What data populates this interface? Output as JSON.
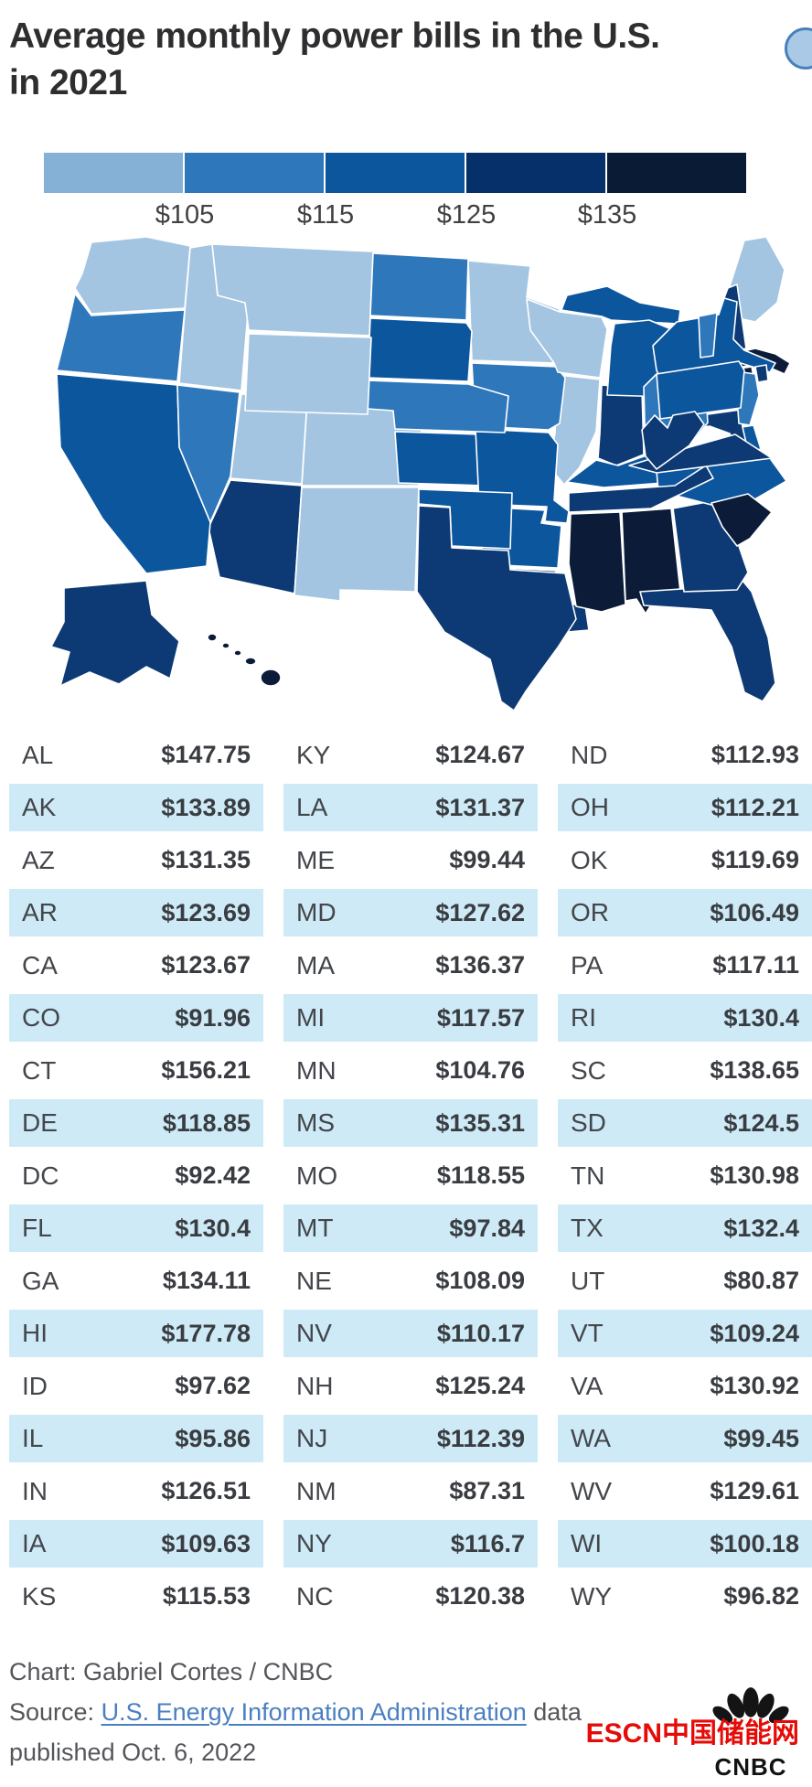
{
  "header": {
    "title_line1": "Average monthly power bills in the U.S.",
    "title_line2": "in 2021"
  },
  "legend": {
    "labels": [
      "$105",
      "$115",
      "$125",
      "$135"
    ],
    "colors": [
      "#85b1d6",
      "#2e77ba",
      "#0c569e",
      "#063069",
      "#0a1b36"
    ]
  },
  "chart_data": {
    "type": "heatmap",
    "subtype": "us-state-choropleth-with-table",
    "title": "Average monthly power bills in the U.S. in 2021",
    "legend_thresholds": [
      105,
      115,
      125,
      135
    ],
    "legend_labels": [
      "$105",
      "$115",
      "$125",
      "$135"
    ],
    "map_bin_colors": [
      "#a3c5e2",
      "#2e77ba",
      "#0c569e",
      "#0d3a74",
      "#0c1c38"
    ],
    "legend_position": "top",
    "states": [
      {
        "abbr": "AL",
        "value": 147.75,
        "display": "$147.75"
      },
      {
        "abbr": "AK",
        "value": 133.89,
        "display": "$133.89"
      },
      {
        "abbr": "AZ",
        "value": 131.35,
        "display": "$131.35"
      },
      {
        "abbr": "AR",
        "value": 123.69,
        "display": "$123.69"
      },
      {
        "abbr": "CA",
        "value": 123.67,
        "display": "$123.67"
      },
      {
        "abbr": "CO",
        "value": 91.96,
        "display": "$91.96"
      },
      {
        "abbr": "CT",
        "value": 156.21,
        "display": "$156.21"
      },
      {
        "abbr": "DE",
        "value": 118.85,
        "display": "$118.85"
      },
      {
        "abbr": "DC",
        "value": 92.42,
        "display": "$92.42"
      },
      {
        "abbr": "FL",
        "value": 130.4,
        "display": "$130.4"
      },
      {
        "abbr": "GA",
        "value": 134.11,
        "display": "$134.11"
      },
      {
        "abbr": "HI",
        "value": 177.78,
        "display": "$177.78"
      },
      {
        "abbr": "ID",
        "value": 97.62,
        "display": "$97.62"
      },
      {
        "abbr": "IL",
        "value": 95.86,
        "display": "$95.86"
      },
      {
        "abbr": "IN",
        "value": 126.51,
        "display": "$126.51"
      },
      {
        "abbr": "IA",
        "value": 109.63,
        "display": "$109.63"
      },
      {
        "abbr": "KS",
        "value": 115.53,
        "display": "$115.53"
      },
      {
        "abbr": "KY",
        "value": 124.67,
        "display": "$124.67"
      },
      {
        "abbr": "LA",
        "value": 131.37,
        "display": "$131.37"
      },
      {
        "abbr": "ME",
        "value": 99.44,
        "display": "$99.44"
      },
      {
        "abbr": "MD",
        "value": 127.62,
        "display": "$127.62"
      },
      {
        "abbr": "MA",
        "value": 136.37,
        "display": "$136.37"
      },
      {
        "abbr": "MI",
        "value": 117.57,
        "display": "$117.57"
      },
      {
        "abbr": "MN",
        "value": 104.76,
        "display": "$104.76"
      },
      {
        "abbr": "MS",
        "value": 135.31,
        "display": "$135.31"
      },
      {
        "abbr": "MO",
        "value": 118.55,
        "display": "$118.55"
      },
      {
        "abbr": "MT",
        "value": 97.84,
        "display": "$97.84"
      },
      {
        "abbr": "NE",
        "value": 108.09,
        "display": "$108.09"
      },
      {
        "abbr": "NV",
        "value": 110.17,
        "display": "$110.17"
      },
      {
        "abbr": "NH",
        "value": 125.24,
        "display": "$125.24"
      },
      {
        "abbr": "NJ",
        "value": 112.39,
        "display": "$112.39"
      },
      {
        "abbr": "NM",
        "value": 87.31,
        "display": "$87.31"
      },
      {
        "abbr": "NY",
        "value": 116.7,
        "display": "$116.7"
      },
      {
        "abbr": "NC",
        "value": 120.38,
        "display": "$120.38"
      },
      {
        "abbr": "ND",
        "value": 112.93,
        "display": "$112.93"
      },
      {
        "abbr": "OH",
        "value": 112.21,
        "display": "$112.21"
      },
      {
        "abbr": "OK",
        "value": 119.69,
        "display": "$119.69"
      },
      {
        "abbr": "OR",
        "value": 106.49,
        "display": "$106.49"
      },
      {
        "abbr": "PA",
        "value": 117.11,
        "display": "$117.11"
      },
      {
        "abbr": "RI",
        "value": 130.4,
        "display": "$130.4"
      },
      {
        "abbr": "SC",
        "value": 138.65,
        "display": "$138.65"
      },
      {
        "abbr": "SD",
        "value": 124.5,
        "display": "$124.5"
      },
      {
        "abbr": "TN",
        "value": 130.98,
        "display": "$130.98"
      },
      {
        "abbr": "TX",
        "value": 132.4,
        "display": "$132.4"
      },
      {
        "abbr": "UT",
        "value": 80.87,
        "display": "$80.87"
      },
      {
        "abbr": "VT",
        "value": 109.24,
        "display": "$109.24"
      },
      {
        "abbr": "VA",
        "value": 130.92,
        "display": "$130.92"
      },
      {
        "abbr": "WA",
        "value": 99.45,
        "display": "$99.45"
      },
      {
        "abbr": "WV",
        "value": 129.61,
        "display": "$129.61"
      },
      {
        "abbr": "WI",
        "value": 100.18,
        "display": "$100.18"
      },
      {
        "abbr": "WY",
        "value": 96.82,
        "display": "$96.82"
      }
    ]
  },
  "footer": {
    "chart_credit": "Chart: Gabriel Cortes / CNBC",
    "source_prefix": "Source: ",
    "source_link": "U.S. Energy Information Administration",
    "source_suffix": " data",
    "source_line2": "published Oct. 6, 2022"
  },
  "branding": {
    "logo_text": "CNBC",
    "watermark": "ESCN中国储能网",
    "watermark_color": "#e50b07"
  }
}
